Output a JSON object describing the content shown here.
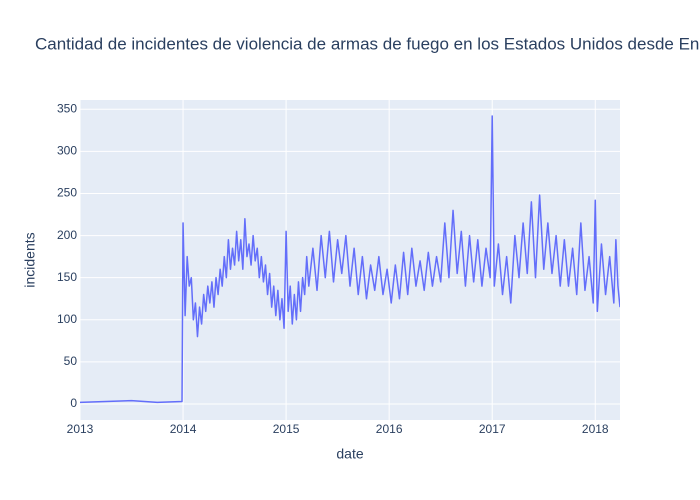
{
  "chart_data": {
    "type": "line",
    "title": "Cantidad de incidentes de violencia de armas de fuego en los Estados Unidos desde En",
    "x_label": "date",
    "y_label": "incidents",
    "x": [
      2013,
      2013.25,
      2013.5,
      2013.75,
      2013.99,
      2014.0,
      2014.02,
      2014.04,
      2014.06,
      2014.08,
      2014.1,
      2014.12,
      2014.14,
      2014.16,
      2014.18,
      2014.2,
      2014.22,
      2014.24,
      2014.26,
      2014.28,
      2014.3,
      2014.32,
      2014.34,
      2014.36,
      2014.38,
      2014.4,
      2014.42,
      2014.44,
      2014.46,
      2014.48,
      2014.5,
      2014.52,
      2014.54,
      2014.56,
      2014.58,
      2014.6,
      2014.62,
      2014.64,
      2014.66,
      2014.68,
      2014.7,
      2014.72,
      2014.74,
      2014.76,
      2014.78,
      2014.8,
      2014.82,
      2014.84,
      2014.86,
      2014.88,
      2014.9,
      2014.92,
      2014.94,
      2014.96,
      2014.98,
      2015.0,
      2015.02,
      2015.04,
      2015.06,
      2015.08,
      2015.1,
      2015.12,
      2015.14,
      2015.16,
      2015.18,
      2015.2,
      2015.22,
      2015.26,
      2015.3,
      2015.34,
      2015.38,
      2015.42,
      2015.46,
      2015.5,
      2015.54,
      2015.58,
      2015.62,
      2015.66,
      2015.7,
      2015.74,
      2015.78,
      2015.82,
      2015.86,
      2015.9,
      2015.94,
      2015.98,
      2016.02,
      2016.06,
      2016.1,
      2016.14,
      2016.18,
      2016.22,
      2016.26,
      2016.3,
      2016.34,
      2016.38,
      2016.42,
      2016.46,
      2016.5,
      2016.54,
      2016.58,
      2016.62,
      2016.66,
      2016.7,
      2016.74,
      2016.78,
      2016.82,
      2016.86,
      2016.9,
      2016.94,
      2016.98,
      2017.0,
      2017.02,
      2017.06,
      2017.1,
      2017.14,
      2017.18,
      2017.22,
      2017.26,
      2017.3,
      2017.34,
      2017.38,
      2017.42,
      2017.46,
      2017.5,
      2017.54,
      2017.58,
      2017.62,
      2017.66,
      2017.7,
      2017.74,
      2017.78,
      2017.82,
      2017.86,
      2017.9,
      2017.94,
      2017.98,
      2018.0,
      2018.02,
      2018.06,
      2018.1,
      2018.14,
      2018.18,
      2018.2,
      2018.22,
      2018.24
    ],
    "series": [
      {
        "name": "incidents",
        "color": "#636efa",
        "values": [
          2,
          3,
          4,
          2,
          3,
          215,
          105,
          175,
          140,
          150,
          100,
          120,
          80,
          115,
          95,
          130,
          110,
          140,
          120,
          145,
          115,
          150,
          130,
          160,
          140,
          175,
          150,
          195,
          160,
          185,
          165,
          205,
          170,
          195,
          160,
          220,
          175,
          190,
          165,
          200,
          170,
          185,
          150,
          175,
          145,
          165,
          130,
          155,
          115,
          140,
          105,
          135,
          100,
          125,
          90,
          205,
          110,
          140,
          95,
          130,
          100,
          145,
          110,
          150,
          130,
          175,
          140,
          185,
          135,
          200,
          150,
          205,
          145,
          195,
          155,
          200,
          140,
          185,
          130,
          175,
          125,
          165,
          135,
          175,
          130,
          160,
          120,
          165,
          125,
          180,
          130,
          185,
          140,
          170,
          135,
          180,
          140,
          175,
          145,
          215,
          150,
          230,
          155,
          205,
          140,
          200,
          145,
          195,
          140,
          185,
          150,
          342,
          140,
          190,
          130,
          175,
          120,
          200,
          150,
          215,
          155,
          240,
          150,
          248,
          160,
          215,
          155,
          200,
          140,
          195,
          140,
          185,
          130,
          215,
          135,
          175,
          120,
          242,
          110,
          190,
          130,
          175,
          120,
          195,
          140,
          115
        ]
      }
    ],
    "xlim": [
      2013,
      2018.24
    ],
    "xticks": [
      2013,
      2014,
      2015,
      2016,
      2017,
      2018
    ],
    "ylim": [
      -19,
      361
    ],
    "yticks": [
      0,
      50,
      100,
      150,
      200,
      250,
      300,
      350
    ],
    "grid": true,
    "plot_bgcolor": "#e5ecf6"
  }
}
